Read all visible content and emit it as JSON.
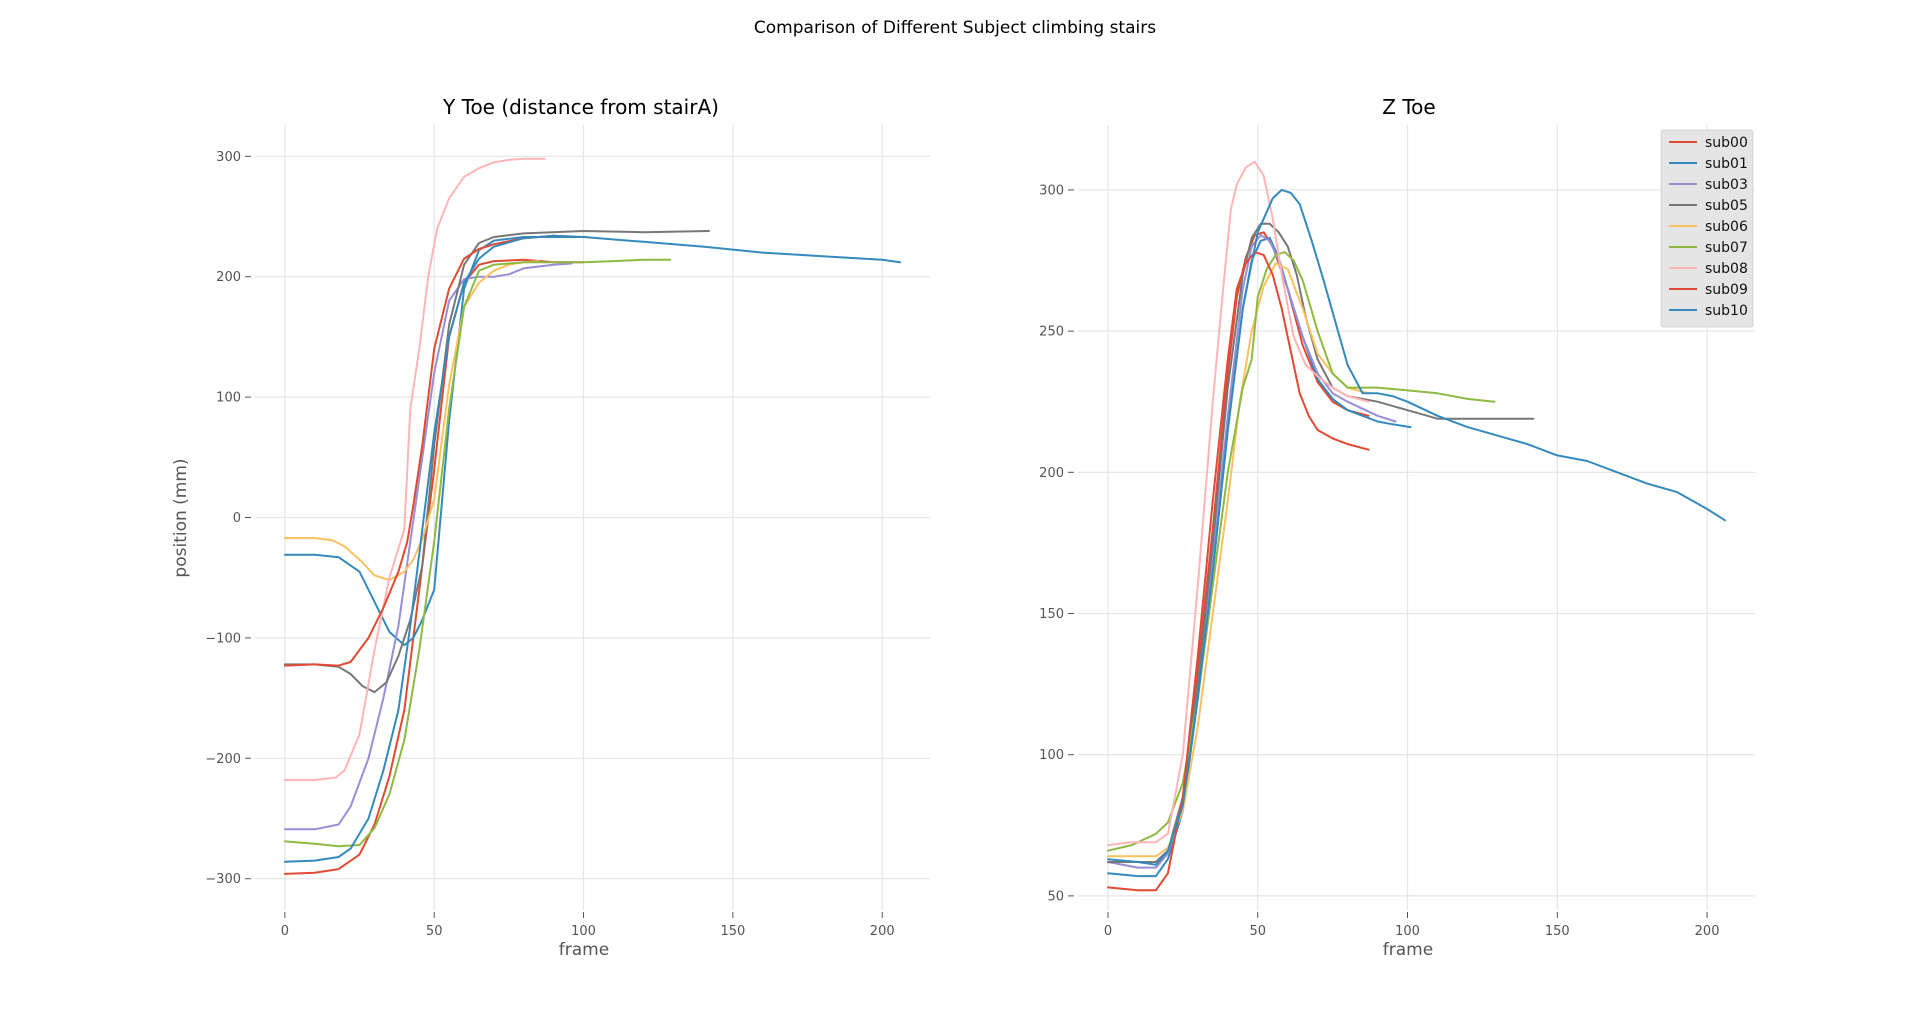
{
  "suptitle": "Comparison of Different Subject climbing stairs",
  "colors": {
    "sub00": "#E24A33",
    "sub01": "#348ABD",
    "sub03": "#988ED5",
    "sub05": "#777777",
    "sub06": "#FBC15E",
    "sub07": "#8EBA42",
    "sub08": "#FFB5B8",
    "sub09": "#E24A33",
    "sub10": "#348ABD"
  },
  "chart_data": [
    {
      "type": "line",
      "title": "Y Toe (distance from stairA)",
      "xlabel": "frame",
      "ylabel": "position (mm)",
      "xlim": [
        -10,
        216
      ],
      "ylim": [
        -326,
        326
      ],
      "xticks": [
        0,
        50,
        100,
        150,
        200
      ],
      "yticks": [
        -300,
        -200,
        -100,
        0,
        100,
        200,
        300
      ],
      "xtick_labels": [
        "0",
        "50",
        "100",
        "150",
        "200"
      ],
      "ytick_labels": [
        "−300",
        "−200",
        "−100",
        "0",
        "100",
        "200",
        "300"
      ],
      "grid": true,
      "series": [
        {
          "name": "sub00",
          "x": [
            0,
            10,
            18,
            25,
            30,
            35,
            40,
            45,
            50,
            55,
            60,
            65,
            70,
            80,
            90,
            100
          ],
          "y": [
            -296,
            -295,
            -292,
            -280,
            -255,
            -215,
            -160,
            -60,
            40,
            150,
            195,
            210,
            213,
            214,
            212,
            212
          ]
        },
        {
          "name": "sub01",
          "x": [
            0,
            10,
            18,
            25,
            30,
            35,
            40,
            43,
            46,
            50,
            55,
            60,
            65,
            70,
            80,
            90,
            101
          ],
          "y": [
            -31,
            -31,
            -33,
            -45,
            -70,
            -95,
            -106,
            -100,
            -85,
            -60,
            80,
            190,
            222,
            230,
            233,
            233,
            233
          ]
        },
        {
          "name": "sub03",
          "x": [
            0,
            10,
            18,
            22,
            28,
            33,
            38,
            42,
            46,
            50,
            55,
            60,
            65,
            70,
            75,
            80,
            90,
            96
          ],
          "y": [
            -259,
            -259,
            -255,
            -240,
            -200,
            -150,
            -90,
            -20,
            50,
            120,
            180,
            198,
            200,
            200,
            202,
            207,
            210,
            211
          ]
        },
        {
          "name": "sub05",
          "x": [
            0,
            10,
            18,
            22,
            26,
            30,
            34,
            38,
            42,
            46,
            50,
            55,
            60,
            65,
            70,
            80,
            100,
            120,
            142
          ],
          "y": [
            -122,
            -122,
            -124,
            -130,
            -140,
            -145,
            -137,
            -115,
            -85,
            -40,
            60,
            160,
            210,
            228,
            233,
            236,
            238,
            237,
            238
          ]
        },
        {
          "name": "sub06",
          "x": [
            0,
            10,
            16,
            20,
            25,
            30,
            35,
            40,
            43,
            46,
            50,
            55,
            60,
            65,
            70,
            75,
            80,
            85
          ],
          "y": [
            -17,
            -17,
            -19,
            -24,
            -35,
            -48,
            -52,
            -45,
            -35,
            -18,
            15,
            110,
            175,
            195,
            205,
            210,
            212,
            213
          ]
        },
        {
          "name": "sub07",
          "x": [
            0,
            10,
            18,
            25,
            30,
            35,
            40,
            45,
            50,
            55,
            60,
            65,
            70,
            80,
            90,
            100,
            110,
            120,
            129
          ],
          "y": [
            -269,
            -271,
            -273,
            -272,
            -258,
            -230,
            -185,
            -110,
            -20,
            90,
            175,
            205,
            210,
            212,
            212,
            212,
            213,
            214,
            214
          ]
        },
        {
          "name": "sub08",
          "x": [
            0,
            10,
            17,
            20,
            25,
            30,
            35,
            40,
            42,
            45,
            48,
            51,
            55,
            60,
            65,
            70,
            75,
            80,
            87
          ],
          "y": [
            -218,
            -218,
            -216,
            -210,
            -180,
            -110,
            -50,
            -10,
            90,
            140,
            200,
            240,
            265,
            283,
            290,
            295,
            297,
            298,
            298
          ]
        },
        {
          "name": "sub09",
          "x": [
            0,
            10,
            18,
            22,
            28,
            33,
            38,
            41,
            43,
            46,
            50,
            55,
            60,
            65,
            70,
            80,
            90
          ],
          "y": [
            -123,
            -122,
            -123,
            -120,
            -100,
            -75,
            -45,
            -20,
            10,
            60,
            140,
            190,
            215,
            223,
            227,
            232,
            234
          ]
        },
        {
          "name": "sub10",
          "x": [
            0,
            10,
            18,
            22,
            28,
            33,
            38,
            42,
            46,
            50,
            55,
            60,
            65,
            70,
            80,
            90,
            100,
            120,
            140,
            160,
            180,
            200,
            206
          ],
          "y": [
            -286,
            -285,
            -282,
            -275,
            -250,
            -210,
            -160,
            -90,
            -10,
            70,
            150,
            195,
            215,
            225,
            232,
            234,
            233,
            229,
            225,
            220,
            217,
            214,
            212
          ]
        }
      ]
    },
    {
      "type": "line",
      "title": "Z Toe",
      "xlabel": "frame",
      "ylabel": "",
      "xlim": [
        -10,
        216
      ],
      "ylim": [
        45,
        323
      ],
      "xticks": [
        0,
        50,
        100,
        150,
        200
      ],
      "yticks": [
        50,
        100,
        150,
        200,
        250,
        300
      ],
      "xtick_labels": [
        "0",
        "50",
        "100",
        "150",
        "200"
      ],
      "ytick_labels": [
        "50",
        "100",
        "150",
        "200",
        "250",
        "300"
      ],
      "grid": true,
      "legend": "top-right",
      "series": [
        {
          "name": "sub00",
          "x": [
            0,
            10,
            16,
            20,
            25,
            30,
            35,
            40,
            43,
            46,
            49,
            52,
            55,
            60,
            65,
            70,
            75,
            80,
            87
          ],
          "y": [
            62,
            62,
            62,
            66,
            84,
            130,
            180,
            235,
            262,
            276,
            284,
            285,
            280,
            265,
            245,
            232,
            225,
            222,
            220
          ]
        },
        {
          "name": "sub01",
          "x": [
            0,
            10,
            16,
            20,
            25,
            30,
            35,
            40,
            45,
            48,
            51,
            54,
            57,
            60,
            65,
            70,
            75,
            80,
            85,
            90,
            95,
            101
          ],
          "y": [
            58,
            57,
            57,
            63,
            80,
            120,
            165,
            215,
            258,
            275,
            282,
            283,
            276,
            265,
            248,
            233,
            226,
            222,
            220,
            218,
            217,
            216
          ]
        },
        {
          "name": "sub03",
          "x": [
            0,
            10,
            16,
            20,
            25,
            30,
            35,
            40,
            45,
            48,
            51,
            54,
            57,
            60,
            65,
            70,
            75,
            80,
            90,
            96
          ],
          "y": [
            62,
            60,
            60,
            65,
            84,
            125,
            170,
            220,
            265,
            280,
            284,
            282,
            275,
            265,
            248,
            235,
            228,
            225,
            220,
            218
          ]
        },
        {
          "name": "sub05",
          "x": [
            0,
            10,
            16,
            20,
            25,
            30,
            35,
            40,
            45,
            48,
            51,
            54,
            57,
            60,
            63,
            66,
            70,
            75,
            80,
            90,
            100,
            110,
            120,
            142
          ],
          "y": [
            62,
            62,
            62,
            66,
            85,
            125,
            175,
            230,
            270,
            283,
            288,
            288,
            285,
            280,
            270,
            255,
            240,
            230,
            227,
            225,
            222,
            219,
            219,
            219
          ]
        },
        {
          "name": "sub06",
          "x": [
            0,
            10,
            16,
            20,
            25,
            30,
            35,
            40,
            44,
            48,
            52,
            56,
            60,
            65,
            70,
            75,
            80,
            87
          ],
          "y": [
            64,
            64,
            64,
            67,
            80,
            110,
            150,
            190,
            225,
            250,
            266,
            274,
            272,
            258,
            242,
            235,
            230,
            228
          ]
        },
        {
          "name": "sub07",
          "x": [
            0,
            8,
            16,
            20,
            25,
            30,
            35,
            40,
            45,
            48,
            50,
            53,
            56,
            59,
            62,
            65,
            70,
            75,
            80,
            90,
            100,
            110,
            120,
            129
          ],
          "y": [
            66,
            68,
            72,
            76,
            90,
            120,
            160,
            200,
            230,
            240,
            262,
            272,
            277,
            278,
            275,
            268,
            250,
            235,
            230,
            230,
            229,
            228,
            226,
            225
          ]
        },
        {
          "name": "sub08",
          "x": [
            0,
            8,
            16,
            20,
            25,
            30,
            35,
            38,
            41,
            43,
            46,
            49,
            52,
            55,
            58,
            62,
            66,
            70,
            75,
            80,
            87
          ],
          "y": [
            68,
            69,
            69,
            72,
            100,
            160,
            225,
            260,
            293,
            302,
            308,
            310,
            305,
            290,
            270,
            248,
            238,
            234,
            230,
            227,
            225
          ]
        },
        {
          "name": "sub09",
          "x": [
            0,
            10,
            16,
            20,
            25,
            30,
            35,
            40,
            43,
            46,
            49,
            52,
            55,
            58,
            61,
            64,
            67,
            70,
            75,
            80,
            87
          ],
          "y": [
            53,
            52,
            52,
            58,
            85,
            135,
            190,
            240,
            265,
            274,
            278,
            277,
            270,
            258,
            243,
            228,
            220,
            215,
            212,
            210,
            208
          ]
        },
        {
          "name": "sub10",
          "x": [
            0,
            10,
            16,
            20,
            25,
            30,
            35,
            40,
            45,
            50,
            55,
            58,
            61,
            64,
            68,
            72,
            76,
            80,
            85,
            90,
            95,
            100,
            110,
            120,
            130,
            140,
            150,
            160,
            170,
            180,
            190,
            200,
            206
          ],
          "y": [
            63,
            62,
            61,
            66,
            82,
            120,
            165,
            215,
            258,
            285,
            297,
            300,
            299,
            295,
            282,
            268,
            253,
            238,
            228,
            228,
            227,
            225,
            220,
            216,
            213,
            210,
            206,
            204,
            200,
            196,
            193,
            187,
            183
          ]
        }
      ]
    }
  ]
}
